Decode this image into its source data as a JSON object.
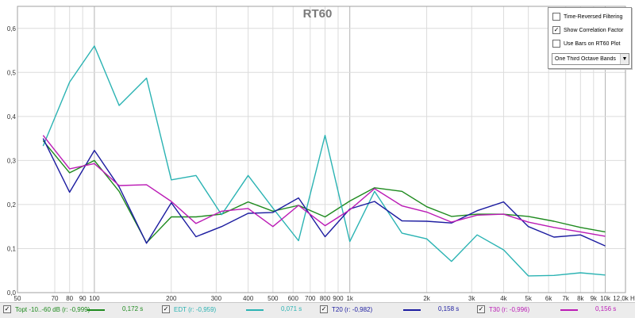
{
  "chart_data": {
    "type": "line",
    "title": "RT60",
    "x_scale": "log",
    "xlim": [
      50,
      12000
    ],
    "ylim": [
      0,
      0.65
    ],
    "x_ticks": [
      50,
      70,
      80,
      90,
      100,
      200,
      300,
      400,
      500,
      600,
      700,
      800,
      900,
      1000,
      2000,
      3000,
      4000,
      5000,
      6000,
      7000,
      8000,
      9000,
      10000,
      12000
    ],
    "x_tick_labels": [
      "50",
      "70",
      "80",
      "90",
      "100",
      "200",
      "300",
      "400",
      "500",
      "600",
      "700",
      "800",
      "900",
      "1k",
      "2k",
      "3k",
      "4k",
      "5k",
      "6k",
      "7k",
      "8k",
      "9k",
      "10k",
      "12,0k Hz"
    ],
    "y_ticks": [
      0.0,
      0.1,
      0.2,
      0.3,
      0.4,
      0.5,
      0.6
    ],
    "y_tick_labels": [
      "0,0",
      "0,1",
      "0,2",
      "0,3",
      "0,4",
      "0,5",
      "0,6"
    ],
    "grid": true,
    "x": [
      63,
      80,
      100,
      125,
      160,
      200,
      250,
      315,
      400,
      500,
      630,
      800,
      1000,
      1250,
      1600,
      2000,
      2500,
      3150,
      4000,
      5000,
      6300,
      8000,
      10000
    ],
    "series": [
      {
        "color": "#1e8a1e",
        "values": [
          0.345,
          0.272,
          0.3,
          0.23,
          0.113,
          0.172,
          0.172,
          0.178,
          0.206,
          0.185,
          0.198,
          0.172,
          0.208,
          0.238,
          0.23,
          0.195,
          0.173,
          0.178,
          0.178,
          0.173,
          0.162,
          0.148,
          0.138
        ]
      },
      {
        "color": "#2bb3b3",
        "values": [
          0.333,
          0.478,
          0.56,
          0.425,
          0.487,
          0.256,
          0.266,
          0.177,
          0.266,
          0.192,
          0.118,
          0.357,
          0.116,
          0.23,
          0.135,
          0.122,
          0.071,
          0.131,
          0.097,
          0.038,
          0.039,
          0.045,
          0.04
        ]
      },
      {
        "color": "#1c1ca0",
        "values": [
          0.35,
          0.228,
          0.323,
          0.24,
          0.112,
          0.204,
          0.127,
          0.15,
          0.18,
          0.182,
          0.215,
          0.127,
          0.19,
          0.207,
          0.163,
          0.162,
          0.158,
          0.186,
          0.206,
          0.15,
          0.126,
          0.131,
          0.106
        ]
      },
      {
        "color": "#bb1bb5",
        "values": [
          0.357,
          0.281,
          0.293,
          0.243,
          0.245,
          0.207,
          0.157,
          0.185,
          0.191,
          0.15,
          0.198,
          0.152,
          0.188,
          0.236,
          0.197,
          0.183,
          0.16,
          0.176,
          0.178,
          0.16,
          0.148,
          0.138,
          0.128
        ]
      }
    ]
  },
  "controls": {
    "time_reversed": {
      "label": "Time-Reversed Filtering",
      "checked": false
    },
    "show_correlation": {
      "label": "Show Correlation Factor",
      "checked": true
    },
    "use_bars": {
      "label": "Use Bars on RT60 Plot",
      "checked": false
    },
    "bands_select": "One Third Octave Bands"
  },
  "legend": [
    {
      "name": "Topt -10..-60 dB (r: -0,999)",
      "value": "0,172 s",
      "color": "#1e8a1e",
      "checked": true
    },
    {
      "name": "EDT (r: -0,959)",
      "value": "0,071 s",
      "color": "#2bb3b3",
      "checked": true
    },
    {
      "name": "T20 (r: -0,982)",
      "value": "0,158 s",
      "color": "#1c1ca0",
      "checked": true
    },
    {
      "name": "T30 (r: -0,996)",
      "value": "0,156 s",
      "color": "#bb1bb5",
      "checked": true
    }
  ]
}
